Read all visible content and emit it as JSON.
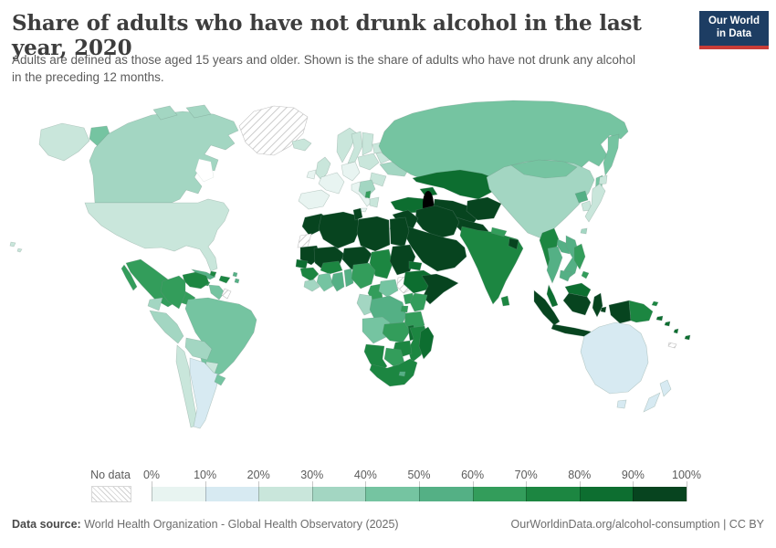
{
  "header": {
    "title": "Share of adults who have not drunk alcohol in the last year, 2020",
    "subtitle": "Adults are defined as those aged 15 years and older. Shown is the share of adults who have not drunk any alcohol in the preceding 12 months.",
    "logo": {
      "line1": "Our World",
      "line2": "in Data",
      "bg_color": "#1d3d63",
      "accent_color": "#c93c37"
    }
  },
  "legend": {
    "no_data_label": "No data",
    "tick_labels": [
      "0%",
      "10%",
      "20%",
      "30%",
      "40%",
      "50%",
      "60%",
      "70%",
      "80%",
      "90%",
      "100%"
    ]
  },
  "footer": {
    "source_label": "Data source:",
    "source_value": " World Health Organization - Global Health Observatory (2025)",
    "right_text": "OurWorldinData.org/alcohol-consumption | CC BY"
  },
  "chart_data": {
    "type": "choropleth",
    "title": "Share of adults who have not drunk alcohol in the last year, 2020",
    "year": 2020,
    "unit": "%",
    "legend_position": "bottom",
    "palette": [
      "#e8f4f1",
      "#d7eaf2",
      "#c9e6db",
      "#a3d6c2",
      "#75c4a1",
      "#54b085",
      "#339d5b",
      "#1c8641",
      "#0d6e30",
      "#07441f"
    ],
    "bucket_ranges": [
      "0-10%",
      "10-20%",
      "20-30%",
      "30-40%",
      "40-50%",
      "50-60%",
      "60-70%",
      "70-80%",
      "80-90%",
      "90-100%"
    ],
    "no_data_key": "nd",
    "countries": {
      "alaska": 2,
      "chukotka": 4,
      "canada": 3,
      "arctic_islands_west": 3,
      "arctic_islands_east": 3,
      "greenland": "nd",
      "iceland": 2,
      "usa": 2,
      "hawaii": 2,
      "hawaii2": 2,
      "mexico": 6,
      "baja": 6,
      "guatemala_honduras": 7,
      "nicaragua_panama": 6,
      "cuba": 5,
      "hispaniola": 7,
      "jamaica": 6,
      "antilles1": 5,
      "antilles2": 5,
      "trinidad": 7,
      "colombia": 6,
      "venezuela": 7,
      "guyana_suriname": 4,
      "french_guiana": "nd",
      "ecuador": 3,
      "peru": 3,
      "brazil": 4,
      "bolivia": 3,
      "paraguay": 2,
      "chile": 2,
      "argentina": 1,
      "uruguay": 4,
      "ireland": 0,
      "uk": 2,
      "norway": 2,
      "sweden": 2,
      "finland": 2,
      "denmark": 0,
      "spain": 0,
      "france": 0,
      "germany": 0,
      "italy": 0,
      "sicily": 0,
      "poland": 2,
      "baltics": 2,
      "belarus": 2,
      "ukraine": 3,
      "romania_bulgaria": 2,
      "balkans": 3,
      "albania": 6,
      "greece": 2,
      "russia": 4,
      "kamchatka": 4,
      "sakhalin": 4,
      "turkey": 8,
      "caucasus": 8,
      "kazakhstan": 8,
      "uzbek_turkmen": 9,
      "afghanistan": 9,
      "pakistan": 9,
      "iran": 9,
      "iraq_syria": 9,
      "israel": 5,
      "saudi_peninsula": 9,
      "india": 7,
      "nepal": 6,
      "bangladesh": 9,
      "sri_lanka": 7,
      "china": 3,
      "mongolia": 4,
      "north_korea": 5,
      "south_korea": 2,
      "japan": 2,
      "hokkaido": 2,
      "taiwan": 3,
      "myanmar": 7,
      "thailand": 5,
      "laos": 5,
      "vietnam": 5,
      "cambodia": 5,
      "malay_peninsula": 8,
      "sumatra": 9,
      "java": 9,
      "borneo_malaysia": 8,
      "borneo_indonesia": 9,
      "sulawesi": 9,
      "moluccas": 9,
      "timor": 9,
      "philippines": 6,
      "philippines_south": 6,
      "papua_indonesia": 9,
      "png": 7,
      "png_islands": 7,
      "solomon1": 8,
      "solomon2": 8,
      "vanuatu": 8,
      "fiji": 8,
      "new_caledonia": "nd",
      "australia": 1,
      "tasmania": 1,
      "nz_north": 1,
      "nz_south": 1,
      "morocco": 9,
      "western_sahara": "nd",
      "algeria": 9,
      "tunisia": 9,
      "libya": 9,
      "egypt": 9,
      "mauritania": 9,
      "mali": 9,
      "niger": 9,
      "chad": 7,
      "sudan": 9,
      "senegal": 8,
      "guinea": 7,
      "sierra_liberia": 3,
      "cote_ivoire": 4,
      "ghana": 5,
      "togo_benin": 5,
      "burkina": 7,
      "nigeria": 6,
      "cameroon": 6,
      "car": 4,
      "south_sudan": "nd",
      "eritrea": 8,
      "ethiopia": 8,
      "somalia": 9,
      "uganda": 6,
      "kenya": 6,
      "rwanda_burundi": 6,
      "drc": 5,
      "gabon_congo": 3,
      "tanzania": 6,
      "angola": 4,
      "zambia": 6,
      "malawi": 8,
      "mozambique": 7,
      "zimbabwe": 7,
      "botswana": 6,
      "namibia": 7,
      "south_africa": 7,
      "lesotho": 5,
      "madagascar": 8
    }
  }
}
